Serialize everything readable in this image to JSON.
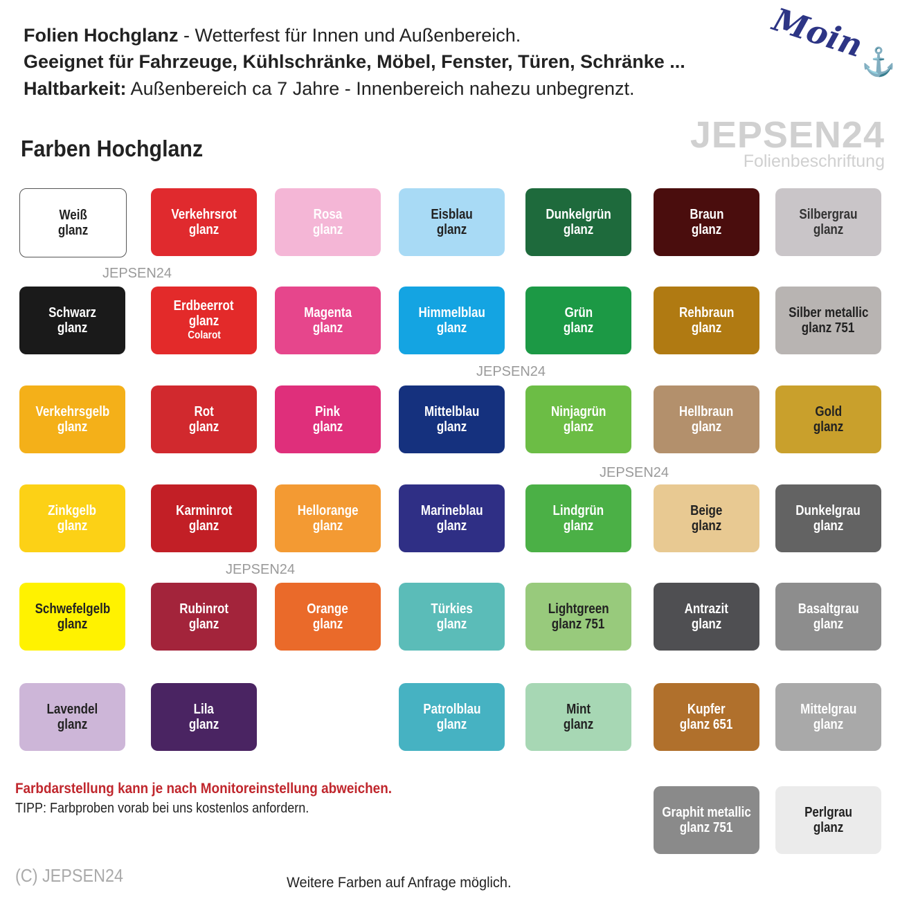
{
  "header": {
    "line1_bold": "Folien Hochglanz",
    "line1_rest": " - Wetterfest für Innen und Außenbereich.",
    "line2": "Geeignet für Fahrzeuge, Kühlschränke, Möbel, Fenster, Türen, Schränke ...",
    "line3_bold": "Haltbarkeit:",
    "line3_rest": " Außenbereich ca 7 Jahre - Innenbereich nahezu unbegrenzt."
  },
  "logo": {
    "script": "Moin",
    "icon": "anchor-icon",
    "brand": "JEPSEN24",
    "brand_sub": "Folienbeschriftung"
  },
  "section_title": "Farben Hochglanz",
  "watermarks": [
    "JEPSEN24",
    "JEPSEN24",
    "JEPSEN24",
    "JEPSEN24"
  ],
  "grid": [
    [
      {
        "l1": "Weiß",
        "l2": "glanz",
        "color": "#ffffff",
        "text": "#222222",
        "border": "#555555"
      },
      {
        "l1": "Verkehrsrot",
        "l2": "glanz",
        "color": "#e02a2e",
        "text": "#ffffff"
      },
      {
        "l1": "Rosa",
        "l2": "glanz",
        "color": "#f4b6d6",
        "text": "#ffffff"
      },
      {
        "l1": "Eisblau",
        "l2": "glanz",
        "color": "#a8daf5",
        "text": "#222222"
      },
      {
        "l1": "Dunkelgrün",
        "l2": "glanz",
        "color": "#1e6a3c",
        "text": "#ffffff"
      },
      {
        "l1": "Braun",
        "l2": "glanz",
        "color": "#4a0d0d",
        "text": "#ffffff"
      },
      {
        "l1": "Silbergrau",
        "l2": "glanz",
        "color": "#c9c5c8",
        "text": "#333333"
      }
    ],
    [
      {
        "l1": "Schwarz",
        "l2": "glanz",
        "color": "#1a1a1a",
        "text": "#ffffff"
      },
      {
        "l1": "Erdbeerrot",
        "l2": "glanz",
        "l3": "Colarot",
        "color": "#e32a2a",
        "text": "#ffffff"
      },
      {
        "l1": "Magenta",
        "l2": "glanz",
        "color": "#e6468c",
        "text": "#ffffff"
      },
      {
        "l1": "Himmelblau",
        "l2": "glanz",
        "color": "#14a4e2",
        "text": "#ffffff"
      },
      {
        "l1": "Grün",
        "l2": "glanz",
        "color": "#1c9945",
        "text": "#ffffff"
      },
      {
        "l1": "Rehbraun",
        "l2": "glanz",
        "color": "#b07a12",
        "text": "#ffffff"
      },
      {
        "l1": "Silber metallic",
        "l2": "glanz 751",
        "color": "#b8b4b2",
        "text": "#222222"
      }
    ],
    [
      {
        "l1": "Verkehrsgelb",
        "l2": "glanz",
        "color": "#f4b019",
        "text": "#ffffff"
      },
      {
        "l1": "Rot",
        "l2": "glanz",
        "color": "#d1292e",
        "text": "#ffffff"
      },
      {
        "l1": "Pink",
        "l2": "glanz",
        "color": "#df2f7b",
        "text": "#ffffff"
      },
      {
        "l1": "Mittelblau",
        "l2": "glanz",
        "color": "#15317e",
        "text": "#ffffff"
      },
      {
        "l1": "Ninjagrün",
        "l2": "glanz",
        "color": "#6cbd45",
        "text": "#ffffff"
      },
      {
        "l1": "Hellbraun",
        "l2": "glanz",
        "color": "#b3906c",
        "text": "#ffffff"
      },
      {
        "l1": "Gold",
        "l2": "glanz",
        "color": "#c9a02c",
        "text": "#222222"
      }
    ],
    [
      {
        "l1": "Zinkgelb",
        "l2": "glanz",
        "color": "#fcd116",
        "text": "#ffffff"
      },
      {
        "l1": "Karminrot",
        "l2": "glanz",
        "color": "#c21f26",
        "text": "#ffffff"
      },
      {
        "l1": "Hellorange",
        "l2": "glanz",
        "color": "#f39a33",
        "text": "#ffffff"
      },
      {
        "l1": "Marineblau",
        "l2": "glanz",
        "color": "#2f2f85",
        "text": "#ffffff"
      },
      {
        "l1": "Lindgrün",
        "l2": "glanz",
        "color": "#4bb046",
        "text": "#ffffff"
      },
      {
        "l1": "Beige",
        "l2": "glanz",
        "color": "#e8c992",
        "text": "#222222"
      },
      {
        "l1": "Dunkelgrau",
        "l2": "glanz",
        "color": "#636363",
        "text": "#ffffff"
      }
    ],
    [
      {
        "l1": "Schwefelgelb",
        "l2": "glanz",
        "color": "#fff200",
        "text": "#222222"
      },
      {
        "l1": "Rubinrot",
        "l2": "glanz",
        "color": "#a3243b",
        "text": "#ffffff"
      },
      {
        "l1": "Orange",
        "l2": "glanz",
        "color": "#ea6a2a",
        "text": "#ffffff"
      },
      {
        "l1": "Türkies",
        "l2": "glanz",
        "color": "#5bbcb8",
        "text": "#ffffff"
      },
      {
        "l1": "Lightgreen",
        "l2": "glanz 751",
        "color": "#98ca7c",
        "text": "#222222"
      },
      {
        "l1": "Antrazit",
        "l2": "glanz",
        "color": "#4f4f52",
        "text": "#ffffff"
      },
      {
        "l1": "Basaltgrau",
        "l2": "glanz",
        "color": "#8d8d8d",
        "text": "#ffffff"
      }
    ],
    [
      {
        "l1": "Lavendel",
        "l2": "glanz",
        "color": "#cdb6d8",
        "text": "#222222"
      },
      {
        "l1": "Lila",
        "l2": "glanz",
        "color": "#4a2462",
        "text": "#ffffff"
      },
      null,
      {
        "l1": "Patrolblau",
        "l2": "glanz",
        "color": "#46b2c2",
        "text": "#ffffff"
      },
      {
        "l1": "Mint",
        "l2": "glanz",
        "color": "#a7d7b4",
        "text": "#222222"
      },
      {
        "l1": "Kupfer",
        "l2": "glanz 651",
        "color": "#b0702c",
        "text": "#ffffff"
      },
      {
        "l1": "Mittelgrau",
        "l2": "glanz",
        "color": "#a9a9a9",
        "text": "#ffffff"
      }
    ],
    [
      null,
      null,
      null,
      null,
      null,
      {
        "l1": "Graphit metallic",
        "l2": "glanz 751",
        "color": "#8a8a8a",
        "text": "#ffffff"
      },
      {
        "l1": "Perlgrau",
        "l2": "glanz",
        "color": "#ebebeb",
        "text": "#222222"
      }
    ]
  ],
  "footer": {
    "warning": "Farbdarstellung kann je nach Monitoreinstellung abweichen.",
    "tip": "TIPP: Farbproben vorab bei uns kostenlos anfordern.",
    "copyright": "(C) JEPSEN24",
    "more": "Weitere Farben auf Anfrage möglich."
  }
}
